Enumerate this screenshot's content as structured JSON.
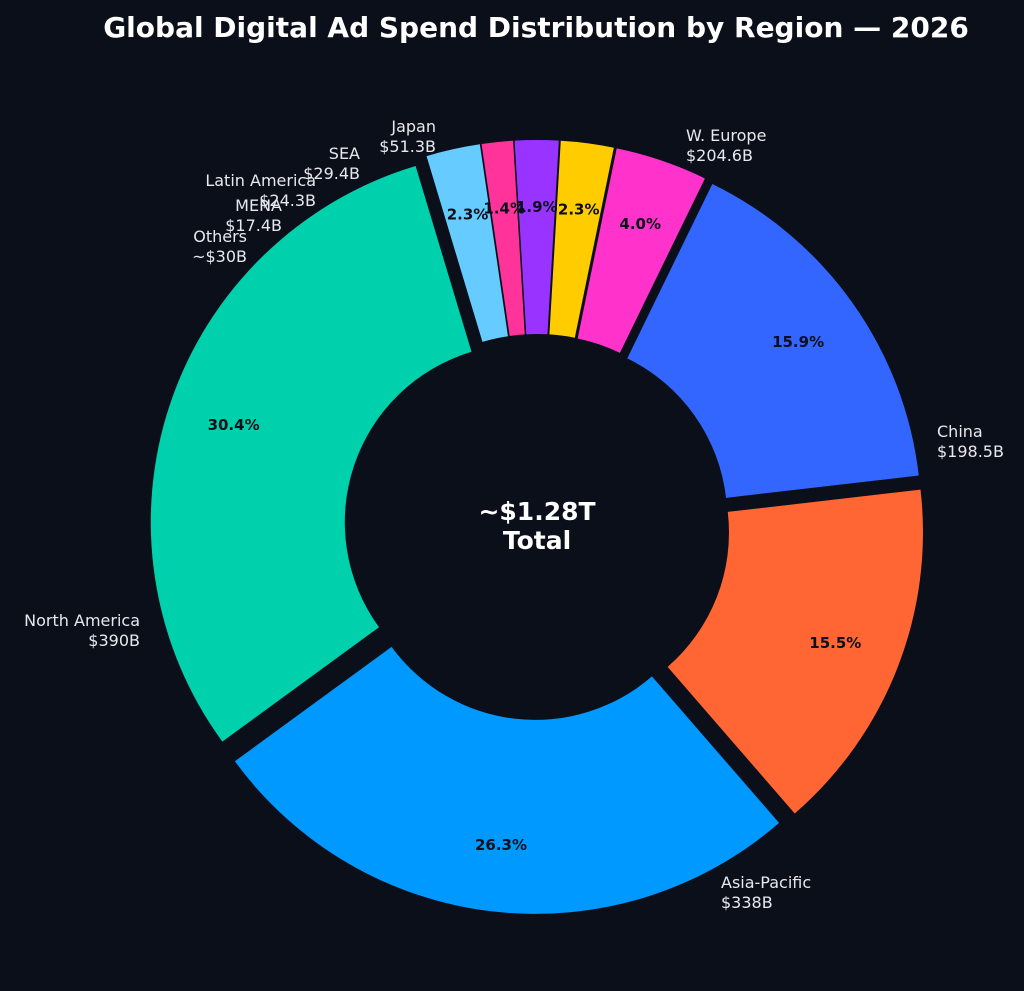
{
  "chart_data": {
    "type": "pie",
    "style": "donut",
    "title": "Global Digital Ad Spend Distribution by Region — 2026",
    "center_label": [
      "~$1.28T",
      "Total"
    ],
    "slices": [
      {
        "name": "W. Europe",
        "value_label": "$204.6B",
        "value": 204.6,
        "pct_label": "15.9%",
        "color": "#3366ff"
      },
      {
        "name": "China",
        "value_label": "$198.5B",
        "value": 198.5,
        "pct_label": "15.5%",
        "color": "#ff6633"
      },
      {
        "name": "Asia-Pacific",
        "value_label": "$338B",
        "value": 338,
        "pct_label": "26.3%",
        "color": "#0099ff"
      },
      {
        "name": "North America",
        "value_label": "$390B",
        "value": 390,
        "pct_label": "30.4%",
        "color": "#00d1ad"
      },
      {
        "name": "Others",
        "value_label": "~$30B",
        "value": 30,
        "pct_label": "2.3%",
        "color": "#66ccff"
      },
      {
        "name": "MENA",
        "value_label": "$17.4B",
        "value": 17.4,
        "pct_label": "1.4%",
        "color": "#ff3399"
      },
      {
        "name": "Latin America",
        "value_label": "$24.3B",
        "value": 24.3,
        "pct_label": "1.9%",
        "color": "#9933ff"
      },
      {
        "name": "SEA",
        "value_label": "$29.4B",
        "value": 29.4,
        "pct_label": "2.3%",
        "color": "#ffcc00"
      },
      {
        "name": "Japan",
        "value_label": "$51.3B",
        "value": 51.3,
        "pct_label": "4.0%",
        "color": "#ff33cc"
      }
    ]
  }
}
